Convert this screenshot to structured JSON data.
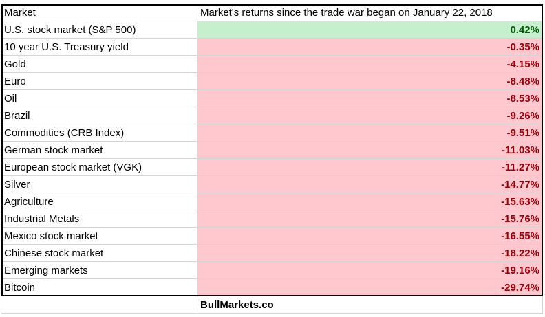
{
  "table": {
    "header": [
      "Market",
      "Market's returns since the trade war began on January 22, 2018"
    ],
    "rows": [
      [
        "U.S. stock market (S&P 500)",
        "0.42%"
      ],
      [
        "10 year U.S. Treasury yield",
        "-0.35%"
      ],
      [
        "Gold",
        "-4.15%"
      ],
      [
        "Euro",
        "-8.48%"
      ],
      [
        "Oil",
        "-8.53%"
      ],
      [
        "Brazil",
        "-9.26%"
      ],
      [
        "Commodities (CRB Index)",
        "-9.51%"
      ],
      [
        "German stock market",
        "-11.03%"
      ],
      [
        "European stock market (VGK)",
        "-11.27%"
      ],
      [
        "Silver",
        "-14.77%"
      ],
      [
        "Agriculture",
        "-15.63%"
      ],
      [
        "Industrial Metals",
        "-15.76%"
      ],
      [
        "Mexico stock market",
        "-16.55%"
      ],
      [
        "Chinese stock market",
        "-18.22%"
      ],
      [
        "Emerging markets",
        "-19.16%"
      ],
      [
        "Bitcoin",
        "-29.74%"
      ]
    ]
  },
  "footer": "BullMarkets.co"
}
